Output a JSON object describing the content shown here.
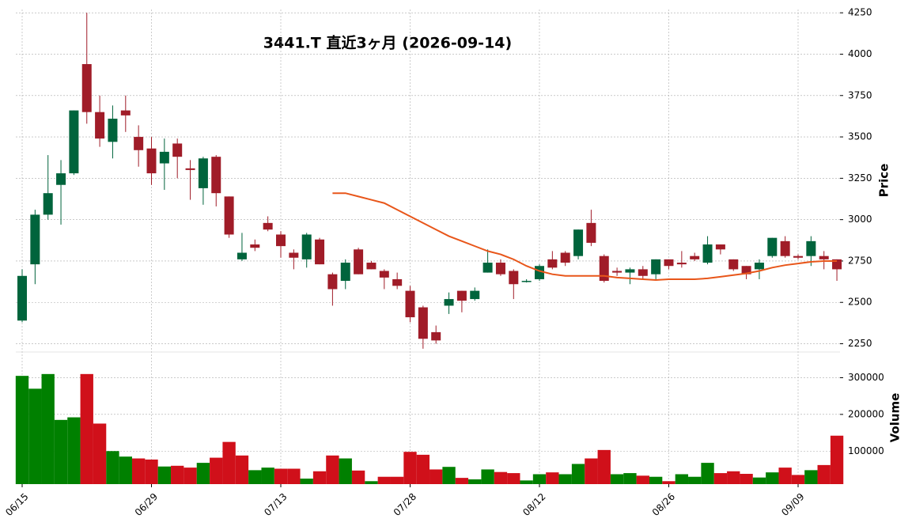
{
  "chart_data": {
    "type": "candlestick",
    "title": "3441.T  直近3ヶ月  (2026-09-14)",
    "categories": [
      "06/15",
      null,
      null,
      null,
      null,
      null,
      null,
      null,
      null,
      null,
      "06/29",
      null,
      null,
      null,
      null,
      null,
      null,
      null,
      null,
      null,
      "07/13",
      null,
      null,
      null,
      null,
      null,
      null,
      null,
      null,
      null,
      "07/28",
      null,
      null,
      null,
      null,
      null,
      null,
      null,
      null,
      null,
      "08/12",
      null,
      null,
      null,
      null,
      null,
      null,
      null,
      null,
      null,
      "08/26",
      null,
      null,
      null,
      null,
      null,
      null,
      null,
      null,
      null,
      "09/09",
      null,
      null,
      null
    ],
    "open": [
      2390,
      2730,
      3030,
      3210,
      3280,
      3940,
      3650,
      3470,
      3660,
      3500,
      3430,
      3340,
      3460,
      3310,
      3190,
      3380,
      3140,
      2760,
      2850,
      2980,
      2910,
      2800,
      2760,
      2880,
      2670,
      2630,
      2820,
      2740,
      2690,
      2640,
      2570,
      2470,
      2320,
      2480,
      2570,
      2520,
      2680,
      2740,
      2690,
      2630,
      2640,
      2760,
      2800,
      2780,
      2980,
      2780,
      2690,
      2680,
      2700,
      2670,
      2760,
      2740,
      2780,
      2740,
      2850,
      2760,
      2720,
      2700,
      2780,
      2870,
      2780,
      2780,
      2780,
      2760
    ],
    "high": [
      2700,
      3060,
      3390,
      3360,
      3660,
      4250,
      3750,
      3690,
      3750,
      3570,
      3500,
      3490,
      3490,
      3360,
      3380,
      3390,
      3140,
      2920,
      2880,
      3020,
      2930,
      2820,
      2920,
      2890,
      2680,
      2760,
      2830,
      2750,
      2700,
      2680,
      2600,
      2480,
      2360,
      2560,
      2570,
      2590,
      2820,
      2760,
      2700,
      2640,
      2730,
      2810,
      2810,
      2940,
      3060,
      2790,
      2710,
      2710,
      2720,
      2760,
      2760,
      2810,
      2800,
      2900,
      2850,
      2760,
      2720,
      2760,
      2890,
      2900,
      2790,
      2900,
      2810,
      2760
    ],
    "low": [
      2380,
      2610,
      3000,
      2970,
      3270,
      3580,
      3440,
      3370,
      3530,
      3320,
      3210,
      3180,
      3250,
      3120,
      3090,
      3080,
      2890,
      2750,
      2810,
      2930,
      2770,
      2700,
      2710,
      2730,
      2480,
      2580,
      2670,
      2700,
      2580,
      2580,
      2380,
      2220,
      2250,
      2430,
      2440,
      2510,
      2680,
      2660,
      2520,
      2620,
      2630,
      2700,
      2720,
      2760,
      2840,
      2620,
      2660,
      2610,
      2640,
      2640,
      2700,
      2710,
      2750,
      2730,
      2790,
      2690,
      2640,
      2640,
      2770,
      2770,
      2760,
      2720,
      2700,
      2630
    ],
    "close": [
      2660,
      3030,
      3160,
      3280,
      3660,
      3650,
      3490,
      3610,
      3630,
      3420,
      3280,
      3410,
      3380,
      3300,
      3370,
      3160,
      2910,
      2800,
      2830,
      2940,
      2840,
      2770,
      2910,
      2730,
      2580,
      2740,
      2670,
      2700,
      2650,
      2600,
      2410,
      2280,
      2270,
      2520,
      2510,
      2570,
      2740,
      2670,
      2610,
      2630,
      2720,
      2710,
      2740,
      2940,
      2860,
      2630,
      2680,
      2700,
      2660,
      2760,
      2720,
      2730,
      2760,
      2850,
      2820,
      2700,
      2670,
      2740,
      2890,
      2780,
      2770,
      2870,
      2760,
      2700
    ],
    "up_color": "#00643c",
    "down_color": "#a01c28",
    "ylim": [
      2200,
      4270
    ],
    "yticks": [
      2250,
      2500,
      2750,
      3000,
      3250,
      3500,
      3750,
      4000,
      4250
    ],
    "ylabel": "Price",
    "grid": true,
    "ma": {
      "color": "#e8561a",
      "values": [
        null,
        null,
        null,
        null,
        null,
        null,
        null,
        null,
        null,
        null,
        null,
        null,
        null,
        null,
        null,
        null,
        null,
        null,
        null,
        null,
        null,
        null,
        null,
        null,
        3160,
        3160,
        3140,
        3120,
        3100,
        3060,
        3020,
        2980,
        2940,
        2900,
        2870,
        2840,
        2810,
        2790,
        2760,
        2720,
        2690,
        2670,
        2660,
        2660,
        2660,
        2660,
        2650,
        2645,
        2640,
        2635,
        2640,
        2640,
        2640,
        2645,
        2655,
        2665,
        2675,
        2690,
        2710,
        2725,
        2735,
        2745,
        2750,
        2750
      ]
    },
    "volume": {
      "ylabel": "Volume",
      "up_color": "#008000",
      "down_color": "#d0101a",
      "ylim": [
        10000,
        370000
      ],
      "yticks": [
        100000,
        200000,
        300000
      ],
      "values": [
        305000,
        270000,
        310000,
        185000,
        192000,
        310000,
        175000,
        100000,
        85000,
        80000,
        77000,
        58000,
        60000,
        55000,
        68000,
        82000,
        125000,
        88000,
        48000,
        55000,
        52000,
        52000,
        25000,
        45000,
        88000,
        80000,
        47000,
        18000,
        30000,
        30000,
        98000,
        90000,
        50000,
        57000,
        27000,
        23000,
        50000,
        43000,
        40000,
        20000,
        37000,
        42000,
        37000,
        65000,
        80000,
        103000,
        37000,
        40000,
        33000,
        30000,
        18000,
        37000,
        30000,
        68000,
        40000,
        45000,
        38000,
        28000,
        42000,
        55000,
        35000,
        48000,
        62000,
        142000
      ]
    }
  }
}
